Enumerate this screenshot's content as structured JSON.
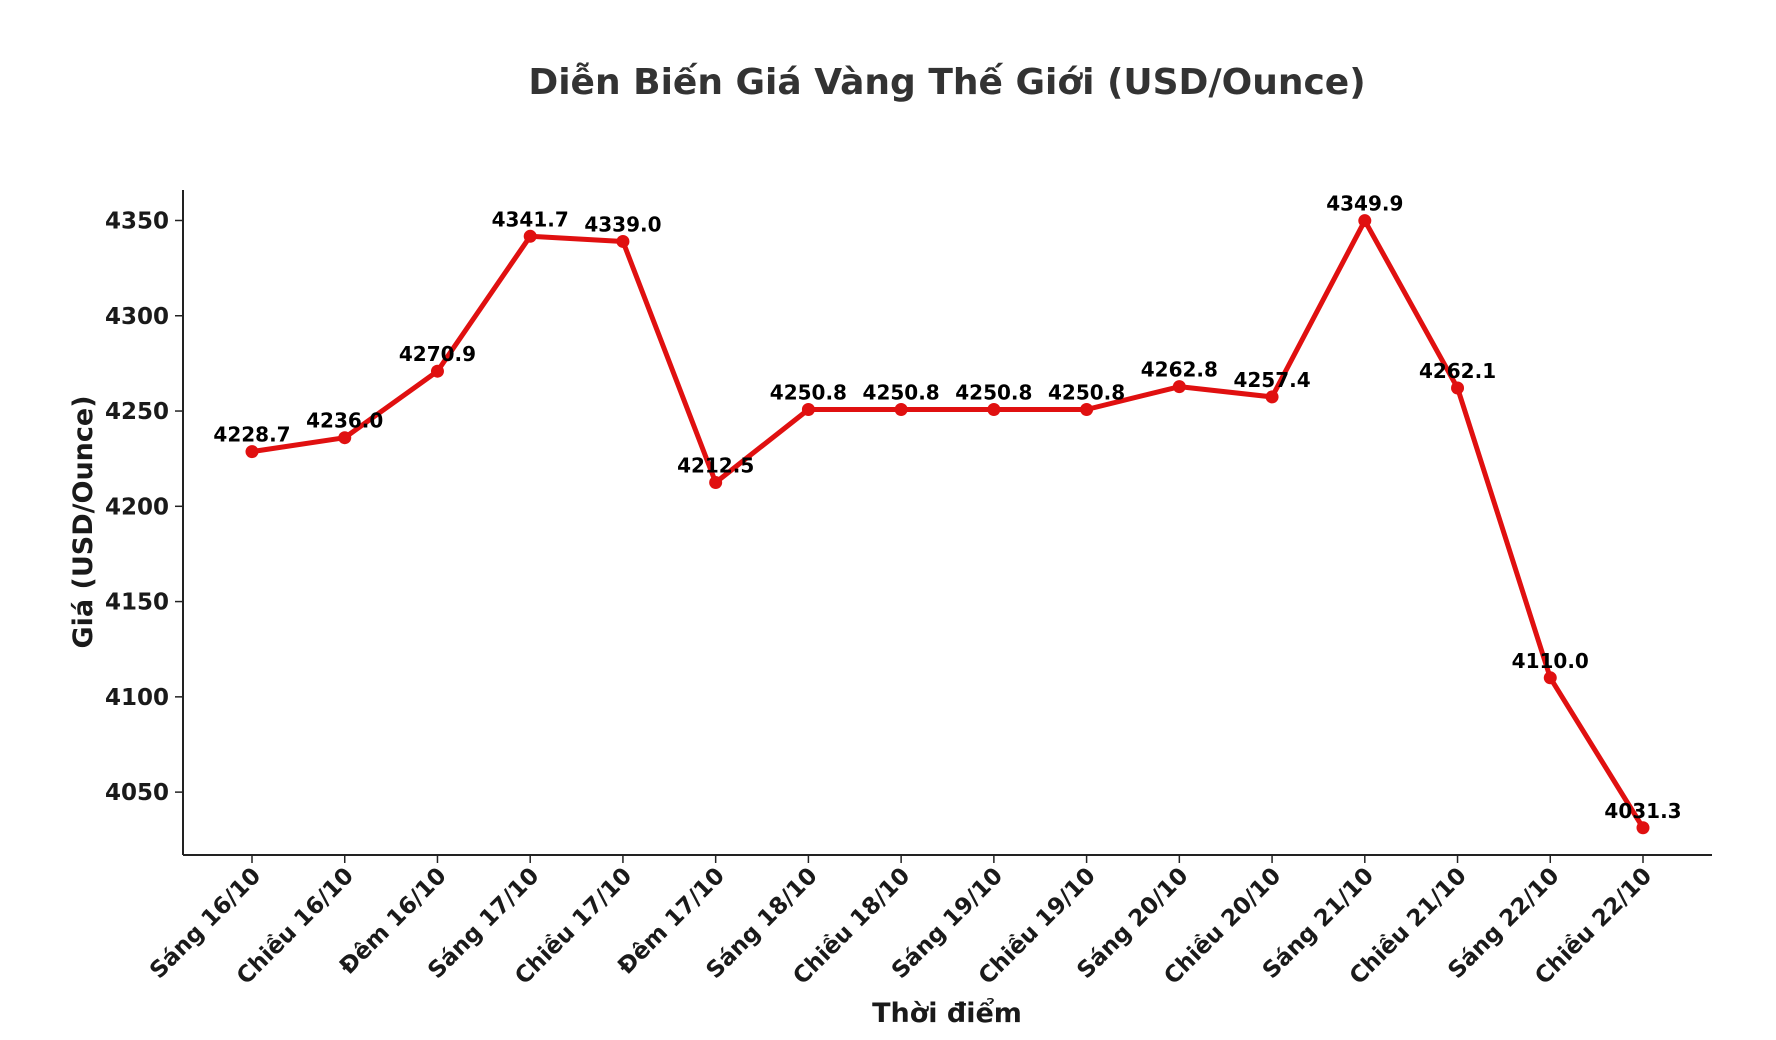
{
  "chart_data": {
    "type": "line",
    "title": "Diễn Biến Giá Vàng Thế Giới (USD/Ounce)",
    "xlabel": "Thời điểm",
    "ylabel": "Giá (USD/Ounce)",
    "categories": [
      "Sáng 16/10",
      "Chiều 16/10",
      "Đêm 16/10",
      "Sáng 17/10",
      "Chiều 17/10",
      "Đêm 17/10",
      "Sáng 18/10",
      "Chiều 18/10",
      "Sáng 19/10",
      "Chiều 19/10",
      "Sáng 20/10",
      "Chiều 20/10",
      "Sáng 21/10",
      "Chiều 21/10",
      "Sáng 22/10",
      "Chiều 22/10"
    ],
    "values": [
      4228.7,
      4236.0,
      4270.9,
      4341.7,
      4339.0,
      4212.5,
      4250.8,
      4250.8,
      4250.8,
      4250.8,
      4262.8,
      4257.4,
      4349.9,
      4262.1,
      4110.0,
      4031.3
    ],
    "value_labels": [
      "4228.7",
      "4236.0",
      "4270.9",
      "4341.7",
      "4339.0",
      "4212.5",
      "4250.8",
      "4250.8",
      "4250.8",
      "4250.8",
      "4262.8",
      "4257.4",
      "4349.9",
      "4262.1",
      "4110.0",
      "4031.3"
    ],
    "yticks": [
      "4050",
      "4100",
      "4150",
      "4200",
      "4250",
      "4300",
      "4350"
    ],
    "ylim": [
      4017,
      4366
    ],
    "grid": false,
    "line_color": "#e01010"
  }
}
